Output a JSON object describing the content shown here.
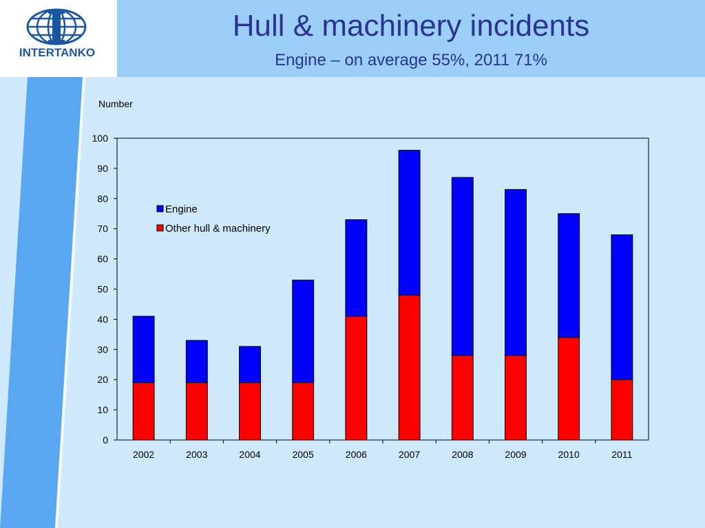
{
  "logo": {
    "text": "INTERTANKO"
  },
  "slide": {
    "title": "Hull & machinery incidents",
    "subtitle": "Engine – on average 55%, 2011 71%"
  },
  "colors": {
    "engine": "#0000ff",
    "other": "#ff0000",
    "title": "#2b3393",
    "header_band": "#9ccff8",
    "background": "#cde9fb"
  },
  "chart_data": {
    "type": "bar",
    "stacked": true,
    "ylabel": "Number",
    "ylim": [
      0,
      100
    ],
    "yticks": [
      0,
      10,
      20,
      30,
      40,
      50,
      60,
      70,
      80,
      90,
      100
    ],
    "categories": [
      "2002",
      "2003",
      "2004",
      "2005",
      "2006",
      "2007",
      "2008",
      "2009",
      "2010",
      "2011"
    ],
    "series": [
      {
        "name": "Other hull & machinery",
        "values": [
          19,
          19,
          19,
          19,
          41,
          48,
          28,
          28,
          34,
          20
        ]
      },
      {
        "name": "Engine",
        "values": [
          22,
          14,
          12,
          34,
          32,
          48,
          59,
          55,
          41,
          48
        ]
      }
    ],
    "legend": {
      "placement": "top-left",
      "order": [
        "Engine",
        "Other hull & machinery"
      ]
    },
    "grid": false
  }
}
